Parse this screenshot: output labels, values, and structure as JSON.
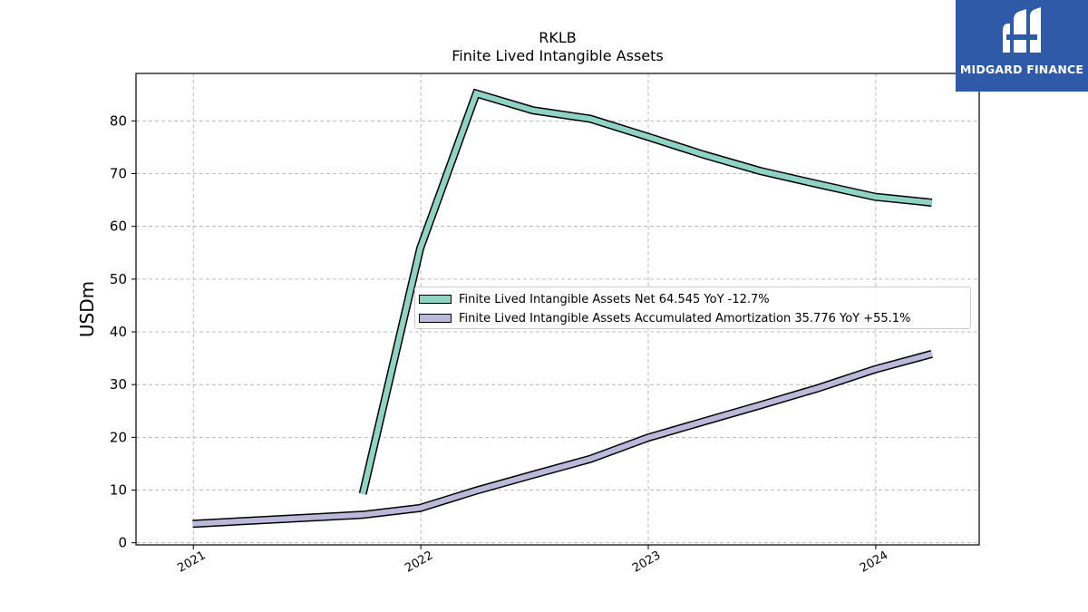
{
  "title": "RKLB",
  "subtitle": "Finite Lived Intangible Assets",
  "logo": {
    "text": "MIDGARD FINANCE",
    "icon": "midgard-logo-icon"
  },
  "colors": {
    "net": "#8fd3c4",
    "amort": "#bcb8da",
    "logo_bg": "#2e5aa8"
  },
  "chart_data": {
    "type": "line",
    "ylabel": "USDm",
    "xlabel": "",
    "ylim": [
      0,
      89
    ],
    "xlim": [
      "2020-10-01",
      "2024-06-15"
    ],
    "grid": true,
    "legend_position": "center-right",
    "x_ticks": [
      "2021",
      "2022",
      "2023",
      "2024"
    ],
    "y_ticks": [
      0,
      10,
      20,
      30,
      40,
      50,
      60,
      70,
      80
    ],
    "series": [
      {
        "name": "Finite Lived Intangible Assets Net",
        "legend_label": "Finite Lived Intangible Assets Net  64.545 YoY -12.7%",
        "color": "#8fd3c4",
        "points": [
          [
            "2021-09-30",
            9.3
          ],
          [
            "2021-12-31",
            55.8
          ],
          [
            "2022-03-31",
            85.2
          ],
          [
            "2022-06-30",
            82.0
          ],
          [
            "2022-09-30",
            80.4
          ],
          [
            "2022-12-31",
            77.0
          ],
          [
            "2023-03-31",
            73.6
          ],
          [
            "2023-06-30",
            70.5
          ],
          [
            "2023-09-30",
            68.0
          ],
          [
            "2023-12-31",
            65.6
          ],
          [
            "2024-03-31",
            64.5
          ]
        ]
      },
      {
        "name": "Finite Lived Intangible Assets Accumulated Amortization",
        "legend_label": "Finite Lived Intangible Assets Accumulated Amortization  35.776 YoY +55.1%",
        "color": "#bcb8da",
        "points": [
          [
            "2020-12-31",
            3.6
          ],
          [
            "2021-09-30",
            5.3
          ],
          [
            "2021-12-31",
            6.6
          ],
          [
            "2022-03-31",
            9.9
          ],
          [
            "2022-06-30",
            12.9
          ],
          [
            "2022-09-30",
            15.9
          ],
          [
            "2022-12-31",
            19.9
          ],
          [
            "2023-03-31",
            23.0
          ],
          [
            "2023-06-30",
            26.1
          ],
          [
            "2023-09-30",
            29.3
          ],
          [
            "2023-12-31",
            32.9
          ],
          [
            "2024-03-31",
            35.8
          ]
        ]
      }
    ]
  }
}
